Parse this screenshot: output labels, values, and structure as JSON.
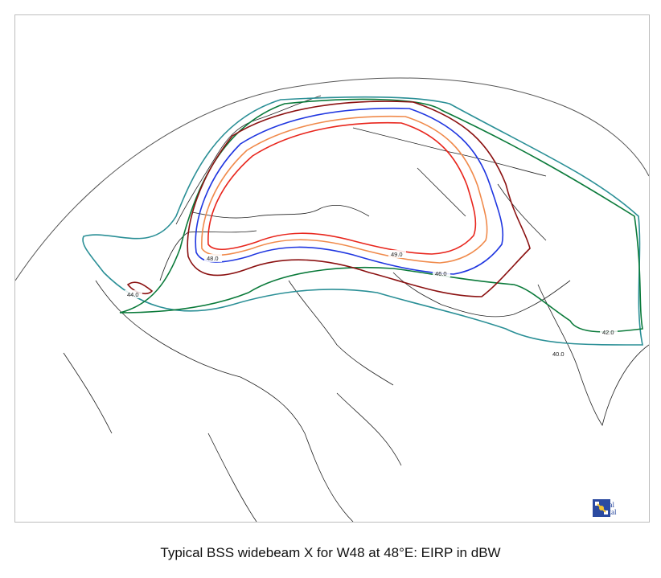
{
  "caption": "Typical BSS widebeam X for W48 at 48°E: EIRP in dBW",
  "logo": {
    "line1": "Visual",
    "line2": "Orbital"
  },
  "contours": [
    {
      "label": "49.0",
      "color": "#e8251c"
    },
    {
      "label": "48.0",
      "color": "#f08a4b"
    },
    {
      "label": "46.0",
      "color": "#1f36e0"
    },
    {
      "label": "44.0",
      "color": "#8b1111"
    },
    {
      "label": "42.0",
      "color": "#0a7a3a"
    },
    {
      "label": "40.0",
      "color": "#2a8f96"
    }
  ]
}
